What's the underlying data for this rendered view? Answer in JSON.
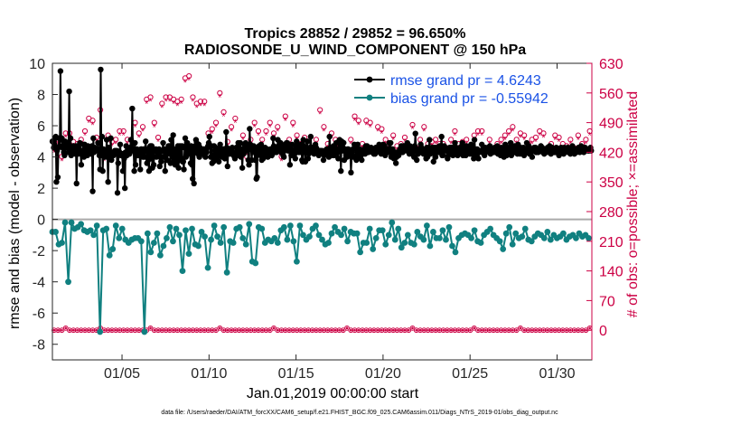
{
  "chart_data": {
    "type": "line",
    "title": "Tropics 28852 / 29852 = 96.650%",
    "subtitle": "RADIOSONDE_U_WIND_COMPONENT @ 150 hPa",
    "xlabel": "Jan.01,2019 00:00:00 start",
    "ylabel_left": "rmse and bias (model - observation)",
    "ylabel_right": "# of obs: o=possible; ×=assimilated",
    "xlim": [
      1,
      32
    ],
    "ylim_left": [
      -9,
      10
    ],
    "ylim_right": [
      -70,
      630
    ],
    "xticks": [
      5,
      10,
      15,
      20,
      25,
      30
    ],
    "xtick_labels": [
      "01/05",
      "01/10",
      "01/15",
      "01/20",
      "01/25",
      "01/30"
    ],
    "yticks_left": [
      -8,
      -6,
      -4,
      -2,
      0,
      2,
      4,
      6,
      8,
      10
    ],
    "yticks_right": [
      0,
      70,
      140,
      210,
      280,
      350,
      420,
      490,
      560,
      630
    ],
    "colors": {
      "rmse": "#000000",
      "bias": "#108080",
      "obs": "#cc0044",
      "right_axis": "#cc0044",
      "legend_text": "#1a52e6",
      "zero_line": "#aaaaaa"
    },
    "legend": [
      {
        "name": "rmse grand pr = 4.6243",
        "series": "rmse"
      },
      {
        "name": "bias grand pr = -0.55942",
        "series": "bias"
      }
    ],
    "legend_position": "top-right",
    "x_start": 1.0,
    "x_step": 0.25,
    "rmse": [
      5.0,
      5.0,
      4.6,
      4.8,
      5.2,
      5.3,
      2.4,
      4.4,
      2.7,
      4.6,
      5.2,
      4.7,
      9.5,
      5.1,
      5.2,
      4.6,
      4.7,
      4.3,
      4.1,
      5.0,
      4.6,
      4.7,
      4.8,
      4.8,
      4.3,
      8.2,
      4.3,
      5.2,
      4.1,
      4.6,
      4.6,
      4.7,
      4.4,
      4.6,
      4.2,
      4.7,
      2.3,
      4.2,
      4.2,
      4.6,
      4.4,
      4.9,
      4.2,
      3.5,
      4.4,
      4.4,
      4.8,
      4.0,
      4.8,
      4.4,
      4.5,
      4.2,
      4.1,
      4.7,
      4.4,
      4.4,
      4.6,
      4.2,
      4.5,
      4.7,
      1.8,
      5.2,
      4.3,
      4.6,
      4.5,
      4.4,
      4.5,
      4.4,
      4.9,
      4.4,
      4.1,
      3.2,
      9.6,
      4.1,
      5.3,
      3.1,
      4.5,
      4.4,
      4.0,
      4.1,
      4.3,
      5.1,
      4.0,
      2.4,
      4.6,
      4.3,
      4.1,
      5.2,
      3.8,
      4.1,
      4.1,
      4.1,
      4.3,
      4.4,
      4.4,
      4.2,
      4.4,
      1.7,
      3.6,
      4.2,
      4.3,
      4.8,
      4.1,
      4.2,
      4.2,
      3.1,
      4.2,
      3.9,
      2.0,
      4.3,
      4.7,
      4.1,
      4.3,
      4.5,
      4.3,
      4.2,
      4.6,
      5.1,
      4.6,
      7.1,
      4.4,
      4.5,
      3.1,
      4.9,
      3.5,
      4.1,
      4.5,
      4.1,
      4.1,
      4.3,
      4.1,
      3.2,
      4.5,
      4.5,
      4.4,
      4.0,
      4.5,
      4.0,
      4.5,
      5.0,
      4.4,
      3.6,
      4.3,
      3.8,
      3.1,
      4.6,
      4.7,
      3.9,
      4.7,
      3.3,
      4.5,
      3.5,
      4.4,
      4.4,
      4.5,
      4.0,
      4.4,
      4.1,
      4.4,
      4.5,
      3.4,
      4.4,
      3.7,
      4.4,
      4.4,
      4.9,
      4.0,
      4.5,
      3.1,
      4.4,
      4.2,
      3.8,
      4.2,
      4.7,
      4.4,
      4.7,
      3.6,
      5.1,
      4.1,
      4.0,
      5.4,
      3.7,
      4.3,
      3.5,
      4.5,
      3.9,
      3.7,
      4.7,
      3.3,
      4.6,
      4.7,
      3.9,
      3.9,
      4.7,
      3.7,
      3.7,
      3.2,
      4.6,
      5.2,
      4.0,
      4.5,
      4.9,
      4.2,
      4.2,
      4.6,
      4.4,
      3.6,
      4.7,
      3.5,
      2.6,
      4.4,
      2.3,
      4.4,
      4.7,
      5.1,
      4.9,
      4.5,
      4.2,
      4.8,
      4.0,
      4.6,
      4.3,
      4.4,
      4.4,
      4.2,
      4.2,
      4.5,
      4.4,
      4.0,
      4.4,
      4.3,
      4.6,
      4.7,
      4.9,
      5.3,
      4.7,
      4.0,
      4.7,
      3.6,
      4.1,
      3.7,
      4.7,
      4.4,
      4.6,
      4.0,
      3.9,
      4.2,
      4.5,
      3.7,
      4.1,
      4.8,
      4.5,
      4.2,
      4.0,
      4.5,
      4.5,
      4.4,
      3.9,
      4.0,
      5.6,
      4.6,
      3.4,
      4.3,
      4.5,
      4.2,
      4.5,
      4.5,
      4.5,
      4.6,
      4.3,
      4.1,
      4.2,
      3.9,
      4.2,
      4.6,
      4.3,
      4.6,
      4.9,
      4.1,
      4.3,
      4.9,
      4.0,
      4.5,
      3.3,
      4.3,
      4.2,
      4.8,
      4.6,
      4.9,
      4.4,
      4.7,
      4.7,
      3.8,
      3.5,
      5.8,
      4.8,
      4.5,
      3.8,
      4.5,
      4.5,
      4.7,
      4.3,
      3.8,
      4.4,
      2.6,
      2.7,
      4.6,
      4.2,
      4.7,
      4.2,
      4.1,
      4.8,
      3.8,
      4.1,
      3.9,
      4.5,
      4.3,
      4.6,
      4.3,
      4.2,
      4.5,
      4.0,
      4.1,
      4.2,
      4.4,
      4.5,
      4.2,
      4.1,
      4.4,
      5.2,
      4.7,
      4.4,
      4.3,
      4.5,
      4.3,
      4.4,
      5.1,
      4.7,
      4.5,
      4.8,
      4.9,
      4.3,
      4.4,
      4.6,
      4.1,
      4.0,
      4.4,
      4.8,
      4.7,
      4.9,
      4.9,
      4.4,
      4.7,
      4.6,
      3.5,
      4.4,
      4.1,
      4.8,
      4.4,
      4.3,
      4.1,
      4.2,
      3.9,
      4.6,
      5.0,
      4.8,
      4.8,
      4.3,
      4.7,
      4.3,
      4.6,
      4.8,
      3.8,
      3.7,
      5.1,
      4.7,
      4.3,
      3.7,
      4.6,
      4.4,
      5.0,
      3.9,
      4.2,
      4.5,
      4.6,
      5.3,
      4.4,
      4.6,
      4.5,
      4.4,
      4.2,
      4.5,
      4.8,
      4.6,
      4.5,
      4.3,
      4.4,
      4.1,
      4.4,
      4.4,
      4.4,
      4.3,
      4.4,
      4.3,
      3.8,
      4.1,
      4.4,
      4.4,
      4.2,
      4.5,
      4.4,
      4.2,
      4.0,
      5.3,
      4.6,
      4.6,
      4.4,
      4.5,
      4.1,
      4.7,
      4.1,
      4.3,
      4.4,
      4.9,
      4.5,
      4.3,
      3.9,
      5.0,
      5.1,
      4.6,
      3.1,
      5.0,
      4.4,
      4.6,
      4.9,
      3.8,
      4.5,
      4.4,
      4.0,
      4.0,
      4.5,
      4.5,
      4.2,
      4.2,
      4.2,
      3.0,
      4.0,
      4.3,
      4.5,
      4.0,
      4.8,
      4.7,
      4.6,
      3.8,
      4.1,
      4.8,
      4.2,
      4.1,
      4.5,
      4.0,
      4.1,
      3.8,
      4.3,
      4.3,
      4.4,
      4.5,
      4.2,
      4.7,
      4.5,
      4.7,
      4.3,
      4.3,
      4.5,
      4.4,
      4.4,
      4.6,
      4.5,
      4.3,
      4.5,
      4.2,
      4.3,
      4.2,
      4.6,
      4.6,
      4.6,
      4.5,
      4.4,
      4.8,
      4.3,
      4.5,
      4.2,
      4.4,
      4.6,
      4.8,
      4.6,
      4.7,
      4.1,
      4.4,
      4.4,
      4.5,
      4.5,
      4.3,
      4.9,
      4.3,
      4.9,
      4.0,
      4.3,
      4.5,
      4.3,
      3.9,
      4.3,
      4.3,
      3.6,
      4.0,
      4.3,
      4.1,
      4.1,
      4.3,
      4.5,
      4.3,
      4.7,
      4.5,
      4.3,
      4.7,
      4.4,
      4.7,
      4.6,
      4.6,
      4.4,
      4.9,
      4.5,
      4.6,
      4.2,
      4.7,
      4.5,
      4.4,
      4.2,
      4.4,
      4.5,
      4.0,
      4.7,
      5.5,
      4.5,
      3.8,
      4.3,
      4.2,
      4.5,
      4.3,
      4.3,
      4.8,
      4.6,
      4.4,
      4.4,
      4.2,
      4.4,
      4.3,
      4.3,
      3.9,
      4.6,
      4.0,
      4.5,
      4.4,
      5.1,
      4.2,
      4.5,
      4.4,
      4.6,
      4.6,
      3.7,
      4.5,
      4.6,
      4.0,
      4.4,
      4.6,
      4.3,
      4.3,
      4.3,
      4.7,
      4.3,
      4.7,
      5.3,
      4.1,
      4.1,
      4.6,
      4.7,
      4.6,
      4.4,
      4.5,
      4.4,
      3.9,
      4.1,
      4.4,
      4.6,
      4.5,
      4.6,
      4.3,
      4.6,
      4.1,
      4.4,
      4.3,
      4.9,
      4.2,
      4.6,
      4.4,
      4.1,
      4.4,
      4.2,
      4.3,
      4.6,
      4.5,
      4.7,
      4.9,
      4.1,
      4.6,
      4.2,
      4.5,
      4.1,
      4.7,
      4.3,
      4.4,
      4.5,
      4.6,
      4.2,
      4.4,
      4.8,
      4.2,
      4.6,
      4.6,
      3.9,
      5.1,
      4.5,
      4.1,
      4.4,
      4.5,
      4.4,
      3.9,
      4.3,
      4.4,
      4.4,
      4.4,
      4.8,
      4.3,
      4.3,
      4.2,
      4.1,
      4.6,
      4.3,
      4.5,
      4.4,
      4.6,
      4.5,
      4.4,
      4.7,
      4.2,
      4.3,
      4.4,
      4.5,
      4.5,
      4.3,
      4.6,
      4.4,
      4.5,
      4.6,
      4.7,
      4.2,
      4.4,
      4.3,
      4.3,
      4.1,
      4.6,
      4.2,
      4.5,
      4.5,
      4.0,
      4.3,
      4.8,
      4.6,
      4.1,
      4.3,
      4.5,
      4.6,
      4.4,
      4.3,
      4.9,
      4.1,
      4.6,
      4.5,
      4.4,
      4.3,
      4.7,
      4.5,
      4.3,
      4.6,
      4.2,
      4.8,
      4.3,
      4.4,
      4.2,
      4.6,
      4.3,
      4.5,
      4.4,
      4.6,
      4.1,
      4.4,
      4.4,
      4.3,
      4.9,
      4.4,
      4.5,
      4.7,
      4.2,
      4.4,
      4.5,
      4.3,
      4.0,
      4.4,
      4.5,
      4.6,
      4.5,
      4.6,
      4.3,
      4.4,
      4.4,
      4.3,
      4.5,
      4.4,
      4.6,
      4.7,
      4.4,
      4.6,
      4.3,
      4.4,
      4.2,
      4.4,
      4.4,
      4.3,
      4.4,
      4.6,
      4.4,
      4.3,
      4.7,
      4.5,
      4.2,
      4.5,
      4.6,
      4.4,
      4.4,
      4.3,
      4.5,
      4.3,
      4.6,
      4.5,
      4.4,
      4.5,
      4.1,
      4.4,
      4.5,
      4.6,
      4.5,
      4.5,
      4.4,
      4.2,
      4.6,
      4.4,
      4.4,
      4.4,
      4.5,
      4.6,
      4.3,
      4.5,
      4.4,
      4.2,
      4.6,
      4.5,
      4.7,
      4.4,
      4.4,
      4.2,
      4.5,
      4.4,
      4.3,
      4.5,
      4.4,
      4.6,
      4.5,
      4.3,
      4.4,
      4.7,
      4.5,
      4.4,
      4.5,
      4.3,
      4.6,
      4.6,
      4.4,
      4.5,
      4.5,
      4.4,
      4.4,
      4.4,
      4.5,
      4.6,
      4.4
    ],
    "bias": [
      -0.8,
      -0.8,
      -1.6,
      -1.5,
      -0.2,
      -4.0,
      -0.2,
      -0.6,
      -0.5,
      -0.3,
      -0.7,
      -0.8,
      -0.7,
      -1.0,
      -0.4,
      -7.2,
      -0.7,
      -0.6,
      -2.3,
      -1.9,
      -0.4,
      -1.2,
      -0.6,
      -1.3,
      -1.5,
      -1.3,
      -1.2,
      -1.2,
      -1.4,
      -7.2,
      -0.9,
      -2.1,
      -1.5,
      -0.9,
      -2.3,
      -1.7,
      -1.2,
      -0.5,
      -1.4,
      -0.6,
      -1.0,
      -3.3,
      -0.7,
      -2.2,
      -0.6,
      -1.6,
      -1.7,
      -0.8,
      -1.1,
      -3.1,
      -1.3,
      -0.4,
      -1.1,
      -1.5,
      -0.5,
      -3.4,
      -1.4,
      -1.5,
      -0.6,
      -0.5,
      -1.2,
      -1.6,
      -0.3,
      -2.7,
      -2.8,
      -0.5,
      -0.6,
      -1.5,
      -1.3,
      -1.4,
      -1.2,
      -1.5,
      -0.7,
      -0.5,
      -1.3,
      -0.4,
      -1.4,
      -2.7,
      -0.4,
      -1.0,
      -1.3,
      -1.1,
      -0.6,
      -0.4,
      -1.0,
      -1.3,
      -1.6,
      -1.5,
      -0.9,
      -0.5,
      -0.8,
      -1.0,
      -0.6,
      -1.4,
      -0.8,
      -0.9,
      -0.9,
      -2.1,
      -1.5,
      -1.5,
      -0.6,
      -1.9,
      -1.2,
      -0.7,
      -0.7,
      -1.6,
      -1.0,
      -0.2,
      -1.3,
      -0.6,
      -1.8,
      -1.5,
      -1.0,
      -1.5,
      -1.6,
      -0.8,
      -1.1,
      -1.3,
      -0.4,
      -1.7,
      -0.8,
      -1.2,
      -1.2,
      -0.7,
      -1.3,
      -0.5,
      -1.7,
      -2.1,
      -1.2,
      -1.0,
      -0.9,
      -1.0,
      -1.2,
      -0.7,
      -1.4,
      -1.5,
      -1.0,
      -0.8,
      -0.6,
      -1.0,
      -1.2,
      -1.4,
      -1.9,
      -0.9,
      -0.5,
      -1.6,
      -0.9,
      -1.2,
      -1.1,
      -0.6,
      -1.3,
      -1.4,
      -1.1,
      -0.9,
      -1.0,
      -1.2,
      -0.8,
      -1.3,
      -1.0,
      -1.2,
      -1.1,
      -0.9,
      -1.3,
      -1.1,
      -1.0,
      -1.2,
      -0.9,
      -1.1,
      -1.0,
      -1.2
    ],
    "obs_possible": [
      430,
      450,
      410,
      465,
      465,
      445,
      440,
      450,
      470,
      500,
      495,
      455,
      520,
      410,
      460,
      445,
      450,
      470,
      470,
      450,
      450,
      490,
      465,
      480,
      545,
      550,
      490,
      455,
      535,
      550,
      550,
      545,
      540,
      545,
      595,
      600,
      550,
      535,
      540,
      540,
      465,
      475,
      490,
      560,
      515,
      445,
      480,
      500,
      440,
      460,
      410,
      450,
      490,
      470,
      450,
      470,
      490,
      465,
      480,
      410,
      505,
      450,
      490,
      460,
      440,
      455,
      430,
      425,
      450,
      520,
      480,
      440,
      465,
      450,
      440,
      430,
      420,
      450,
      505,
      495,
      440,
      495,
      490,
      425,
      480,
      475,
      450,
      430,
      460,
      435,
      440,
      455,
      430,
      485,
      430,
      450,
      480,
      440,
      445,
      450,
      440,
      440,
      430,
      450,
      470,
      440,
      445,
      450,
      430,
      460,
      470,
      470,
      430,
      450,
      425,
      440,
      450,
      460,
      470,
      480,
      450,
      465,
      460,
      440,
      450,
      455,
      470,
      465,
      430,
      440,
      460,
      455,
      440,
      435,
      450,
      430,
      460,
      440,
      450,
      470
    ],
    "obs_assimilated": [
      420,
      440,
      400,
      455,
      455,
      435,
      430,
      440,
      460,
      490,
      485,
      445,
      510,
      400,
      450,
      435,
      440,
      460,
      460,
      440,
      440,
      480,
      455,
      470,
      535,
      540,
      480,
      445,
      525,
      540,
      540,
      535,
      530,
      535,
      585,
      590,
      540,
      525,
      530,
      530,
      455,
      465,
      480,
      550,
      505,
      435,
      470,
      490,
      430,
      450,
      400,
      440,
      480,
      460,
      440,
      460,
      480,
      455,
      470,
      400,
      495,
      440,
      480,
      450,
      430,
      445,
      420,
      415,
      440,
      510,
      470,
      430,
      455,
      440,
      430,
      420,
      410,
      440,
      495,
      485,
      430,
      485,
      480,
      415,
      470,
      465,
      440,
      420,
      450,
      425,
      430,
      445,
      420,
      475,
      420,
      440,
      470,
      430,
      435,
      440,
      430,
      430,
      420,
      440,
      460,
      430,
      435,
      440,
      420,
      450,
      460,
      460,
      420,
      440,
      415,
      430,
      440,
      450,
      460,
      470,
      440,
      455,
      450,
      430,
      440,
      445,
      460,
      455,
      420,
      430,
      450,
      445,
      430,
      425,
      440,
      420,
      450,
      430,
      440,
      460
    ],
    "obs_count_bottom": [
      0,
      0,
      0,
      5,
      0,
      0,
      0,
      0,
      0,
      0,
      0,
      0,
      5,
      0,
      0,
      0,
      0,
      0,
      0,
      0,
      0,
      0,
      0,
      0,
      0,
      5,
      0,
      0,
      0,
      0,
      0,
      0,
      0,
      0,
      0,
      0,
      0,
      0,
      0,
      0,
      0,
      0,
      0,
      5,
      0,
      0,
      0,
      0,
      0,
      0,
      0,
      0,
      0,
      0,
      0,
      0,
      0,
      5,
      0,
      0,
      0,
      0,
      0,
      0,
      0,
      0,
      0,
      0,
      0,
      0,
      0,
      0,
      0,
      0,
      0,
      0,
      5,
      0,
      0,
      0,
      0,
      0,
      0,
      0,
      0,
      0,
      0,
      0,
      0,
      0,
      0,
      0,
      0,
      5,
      0,
      0,
      0,
      0,
      0,
      0,
      0,
      0,
      0,
      0,
      0,
      0,
      0,
      0,
      0,
      5,
      0,
      0,
      0,
      0,
      0,
      0,
      0,
      0,
      0,
      0,
      0,
      5,
      0,
      0,
      0,
      0,
      0,
      0,
      0,
      0,
      0,
      0,
      0,
      0,
      0,
      0,
      0,
      0,
      0,
      5
    ],
    "footnote": "data file: /Users/raeder/DAI/ATM_forcXX/CAM6_setup/f.e21.FHIST_BGC.f09_025.CAM6assim.011/Diags_NTrS_2019-01/obs_diag_output.nc"
  }
}
